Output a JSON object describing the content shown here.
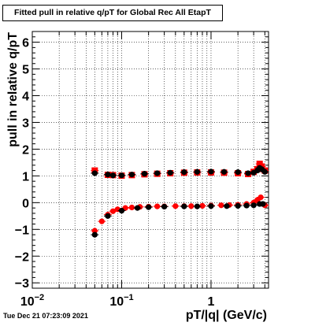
{
  "header": {
    "title": "Fitted pull in relative q/pT for Global Rec All EtapT"
  },
  "footer": {
    "timestamp": "Tue Dec 21 07:23:09 2021"
  },
  "chart_data": {
    "type": "scatter",
    "title": "Fitted pull in relative q/pT for Global Rec All EtapT",
    "xlabel": "pT/|q| (GeV/c)",
    "ylabel": "pull in relative q/pT",
    "x_scale": "log",
    "xlim": [
      0.01,
      4.4
    ],
    "ylim": [
      -3.2,
      6.4
    ],
    "x_ticks": [
      {
        "value": 0.01,
        "base": "10",
        "exp": "−2"
      },
      {
        "value": 0.1,
        "base": "10",
        "exp": "−1"
      },
      {
        "value": 1,
        "base": "1",
        "exp": ""
      }
    ],
    "y_ticks": [
      -3,
      -2,
      -1,
      0,
      1,
      2,
      3,
      4,
      5,
      6
    ],
    "grid": true,
    "colors": {
      "black": "#000000",
      "red": "#ff0000"
    },
    "series": [
      {
        "marker": "square",
        "color": "#ff0000",
        "x": [
          0.05,
          0.07,
          0.08,
          0.1,
          0.13,
          0.18,
          0.25,
          0.35,
          0.5,
          0.7,
          1.0,
          1.4,
          2.0,
          2.6,
          3.0,
          3.3,
          3.5,
          3.7,
          4.0
        ],
        "y": [
          1.2,
          1.04,
          1.03,
          1.01,
          1.03,
          1.06,
          1.08,
          1.1,
          1.12,
          1.13,
          1.13,
          1.12,
          1.1,
          1.07,
          1.15,
          1.25,
          1.45,
          1.35,
          1.2
        ]
      },
      {
        "marker": "circle",
        "color": "#000000",
        "x": [
          0.05,
          0.07,
          0.08,
          0.1,
          0.13,
          0.18,
          0.25,
          0.35,
          0.5,
          0.7,
          1.0,
          1.4,
          2.0,
          2.6,
          3.0,
          3.3,
          3.5,
          3.7,
          4.0
        ],
        "y": [
          1.1,
          1.05,
          1.02,
          1.02,
          1.05,
          1.08,
          1.1,
          1.12,
          1.14,
          1.15,
          1.16,
          1.15,
          1.14,
          1.1,
          1.12,
          1.2,
          1.3,
          1.25,
          1.15
        ]
      },
      {
        "marker": "circle",
        "color": "#ff0000",
        "x": [
          0.05,
          0.06,
          0.07,
          0.08,
          0.09,
          0.11,
          0.13,
          0.16,
          0.2,
          0.25,
          0.3,
          0.4,
          0.5,
          0.6,
          0.8,
          1.0,
          1.3,
          1.6,
          2.0,
          2.5,
          3.0,
          3.3,
          3.6,
          4.0
        ],
        "y": [
          -1.05,
          -0.7,
          -0.45,
          -0.32,
          -0.25,
          -0.2,
          -0.18,
          -0.16,
          -0.15,
          -0.14,
          -0.14,
          -0.13,
          -0.13,
          -0.13,
          -0.12,
          -0.11,
          -0.1,
          -0.09,
          -0.08,
          -0.05,
          0.0,
          0.1,
          0.2,
          -0.1
        ]
      },
      {
        "marker": "circle",
        "color": "#000000",
        "x": [
          0.05,
          0.07,
          0.1,
          0.15,
          0.2,
          0.3,
          0.5,
          0.7,
          1.0,
          1.5,
          2.0,
          2.5,
          3.0,
          3.5,
          3.8
        ],
        "y": [
          -1.2,
          -0.5,
          -0.3,
          -0.2,
          -0.17,
          -0.15,
          -0.14,
          -0.14,
          -0.13,
          -0.13,
          -0.12,
          -0.11,
          -0.1,
          -0.05,
          -0.05
        ]
      }
    ]
  }
}
